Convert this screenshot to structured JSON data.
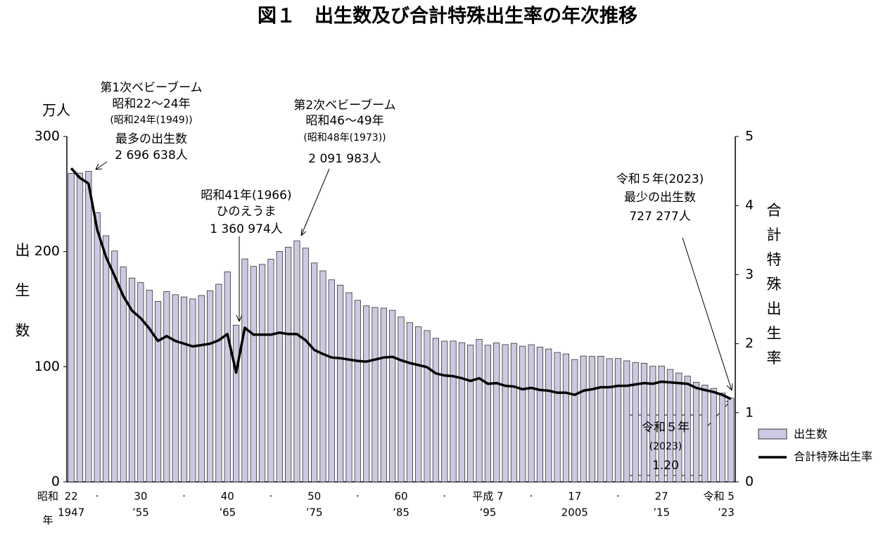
{
  "chart_data": {
    "type": "bar-line",
    "title": "図１　出生数及び合計特殊出生率の年次推移",
    "y_unit": "万人",
    "y_label": "出生数",
    "y2_label": "合計特殊出生率",
    "x_era_prefix": "昭和",
    "x_era_suffix": "年",
    "categories": [
      "22",
      null,
      null,
      "·",
      null,
      null,
      null,
      null,
      "30",
      null,
      null,
      null,
      null,
      "·",
      null,
      null,
      null,
      null,
      "40",
      null,
      null,
      null,
      null,
      "·",
      null,
      null,
      null,
      null,
      "50",
      null,
      null,
      null,
      null,
      "·",
      null,
      null,
      null,
      null,
      "60",
      null,
      null,
      null,
      null,
      "·",
      null,
      null,
      null,
      null,
      "平成 7",
      null,
      null,
      null,
      null,
      "·",
      null,
      null,
      null,
      null,
      "17",
      null,
      null,
      null,
      null,
      "·",
      null,
      null,
      null,
      null,
      "27",
      null,
      null,
      null,
      null,
      null,
      null,
      null,
      "令和 5"
    ],
    "categories_western": [
      "1947",
      null,
      null,
      null,
      null,
      null,
      null,
      null,
      "’55",
      null,
      null,
      null,
      null,
      null,
      null,
      null,
      null,
      null,
      "’65",
      null,
      null,
      null,
      null,
      null,
      null,
      null,
      null,
      null,
      "’75",
      null,
      null,
      null,
      null,
      null,
      null,
      null,
      null,
      null,
      "’85",
      null,
      null,
      null,
      null,
      null,
      null,
      null,
      null,
      null,
      "’95",
      null,
      null,
      null,
      null,
      null,
      null,
      null,
      null,
      null,
      "2005",
      null,
      null,
      null,
      null,
      null,
      null,
      null,
      null,
      null,
      "’15",
      null,
      null,
      null,
      null,
      null,
      null,
      null,
      "’23"
    ],
    "ylim": [
      0,
      300
    ],
    "yticks": [
      0,
      100,
      200,
      300
    ],
    "y2lim": [
      0,
      5
    ],
    "y2ticks": [
      0,
      1,
      2,
      3,
      4,
      5
    ],
    "legend": "bottom-right",
    "series": [
      {
        "name": "出生数",
        "color": "#cfc8e2",
        "values": [
          267.9,
          268.2,
          269.7,
          233.8,
          213.8,
          200.5,
          186.8,
          177.0,
          173.1,
          166.5,
          156.7,
          165.3,
          162.6,
          160.6,
          158.9,
          161.9,
          166.0,
          171.7,
          182.4,
          136.1,
          193.6,
          187.2,
          188.9,
          193.4,
          200.1,
          203.9,
          209.2,
          203.0,
          190.1,
          183.3,
          175.5,
          170.9,
          164.3,
          157.7,
          152.9,
          151.5,
          150.9,
          149.0,
          143.2,
          138.3,
          134.7,
          131.4,
          124.7,
          122.2,
          122.3,
          120.9,
          118.8,
          123.8,
          118.7,
          120.7,
          119.2,
          120.3,
          117.8,
          119.1,
          117.1,
          115.4,
          112.4,
          111.1,
          106.3,
          109.3,
          109.0,
          109.1,
          107.0,
          107.1,
          105.1,
          103.7,
          103.0,
          100.4,
          100.6,
          97.7,
          94.6,
          91.8,
          86.5,
          84.1,
          81.2,
          77.1,
          72.7
        ]
      },
      {
        "name": "合計特殊出生率",
        "color": "#000000",
        "axis": "y2",
        "values": [
          4.54,
          4.4,
          4.32,
          3.65,
          3.26,
          2.98,
          2.69,
          2.48,
          2.37,
          2.22,
          2.04,
          2.11,
          2.04,
          2.0,
          1.96,
          1.98,
          2.0,
          2.05,
          2.14,
          1.58,
          2.23,
          2.13,
          2.13,
          2.13,
          2.16,
          2.14,
          2.14,
          2.05,
          1.91,
          1.85,
          1.8,
          1.79,
          1.77,
          1.75,
          1.74,
          1.77,
          1.8,
          1.81,
          1.76,
          1.72,
          1.69,
          1.66,
          1.57,
          1.54,
          1.53,
          1.5,
          1.46,
          1.5,
          1.42,
          1.43,
          1.39,
          1.38,
          1.34,
          1.36,
          1.33,
          1.32,
          1.29,
          1.29,
          1.26,
          1.32,
          1.34,
          1.37,
          1.37,
          1.39,
          1.39,
          1.41,
          1.43,
          1.42,
          1.45,
          1.44,
          1.43,
          1.42,
          1.36,
          1.33,
          1.3,
          1.26,
          1.2
        ]
      }
    ],
    "annotations": [
      {
        "lines": [
          "第1次ベビーブーム",
          "昭和22〜24年",
          "(昭和24年(1949))",
          "最多の出生数",
          "2 696 638人"
        ]
      },
      {
        "lines": [
          "第2次ベビーブーム",
          "昭和46〜49年",
          "(昭和48年(1973))",
          "2 091 983人"
        ]
      },
      {
        "lines": [
          "昭和41年(1966)",
          "ひのえうま",
          "1 360 974人"
        ]
      },
      {
        "lines": [
          "令和５年(2023)",
          "最少の出生数",
          "727 277人"
        ]
      },
      {
        "lines": [
          "令和５年",
          "(2023)",
          "1.20"
        ]
      }
    ]
  }
}
